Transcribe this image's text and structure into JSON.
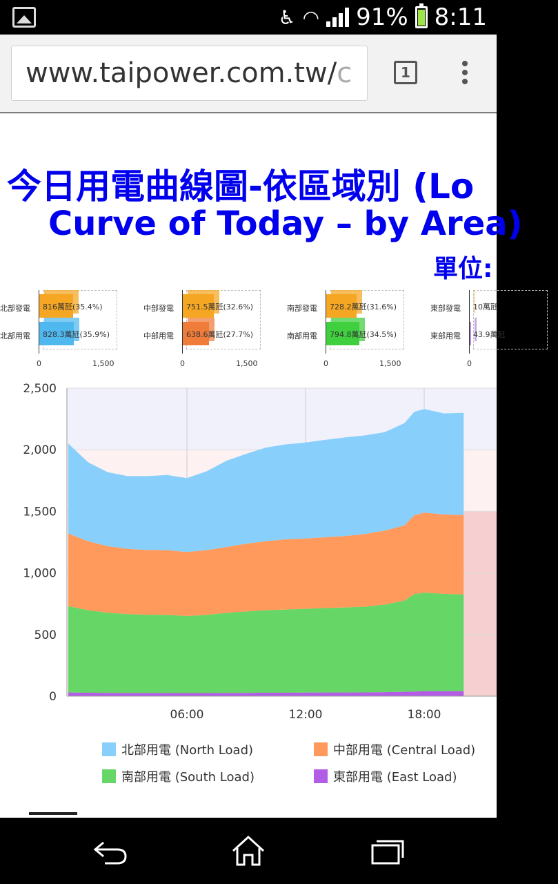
{
  "status_bar": {
    "battery": "91%",
    "time": "8:11",
    "icons": [
      "image-notification-icon",
      "accessibility-icon",
      "wifi-icon",
      "signal-icon",
      "battery-icon"
    ]
  },
  "browser": {
    "url_main": "www.taipower.com.tw/",
    "url_faded": "c",
    "tab_count": "1"
  },
  "page": {
    "title_line1": "今日用電曲線圖-依區域別 (Lo",
    "title_line2": "Curve of Today – by Area)",
    "unit_label": "單位:"
  },
  "regions": [
    {
      "gen_label": "北部發電",
      "load_label": "北部用電",
      "gen_text": "816萬瓩(35.4%)",
      "load_text": "828.3萬瓩(35.9%)",
      "gen": 816,
      "load": 828.3,
      "gen_color": "#f5a623",
      "load_color": "#4fb8ef",
      "tick0": "0",
      "tick1": "1,500"
    },
    {
      "gen_label": "中部發電",
      "load_label": "中部用電",
      "gen_text": "751.5萬瓩(32.6%)",
      "load_text": "638.6萬瓩(27.7%)",
      "gen": 751.5,
      "load": 638.6,
      "gen_color": "#f5a623",
      "load_color": "#f07c3a",
      "tick0": "0",
      "tick1": "1,500"
    },
    {
      "gen_label": "南部發電",
      "load_label": "南部用電",
      "gen_text": "728.2萬瓩(31.6%)",
      "load_text": "794.8萬瓩(34.5%)",
      "gen": 728.2,
      "load": 794.8,
      "gen_color": "#f5a623",
      "load_color": "#3fcf3f",
      "tick0": "0",
      "tick1": "1,500"
    },
    {
      "gen_label": "東部發電",
      "load_label": "東部用電",
      "gen_text": "10萬瓩",
      "load_text": "43.9萬瓩",
      "gen": 10,
      "load": 43.9,
      "gen_color": "#f5a623",
      "load_color": "#b48adf",
      "tick0": "0",
      "tick1": ""
    }
  ],
  "chart_data": {
    "type": "area",
    "stacked": true,
    "x_ticks": [
      "06:00",
      "12:00",
      "18:00"
    ],
    "y_ticks": [
      "0",
      "500",
      "1,000",
      "1,500",
      "2,000",
      "2,500"
    ],
    "ylim": [
      0,
      2500
    ],
    "x_hours": [
      0,
      1,
      2,
      3,
      4,
      5,
      6,
      7,
      8,
      9,
      10,
      11,
      12,
      13,
      14,
      15,
      16,
      17,
      17.5,
      18,
      19,
      20
    ],
    "series": [
      {
        "name": "東部用電 (East Load)",
        "color": "#b35de6",
        "values": [
          30,
          28,
          27,
          26,
          26,
          25,
          25,
          25,
          26,
          27,
          28,
          28,
          29,
          30,
          30,
          31,
          33,
          36,
          38,
          40,
          40,
          40
        ]
      },
      {
        "name": "南部用電 (South Load)",
        "color": "#66d666",
        "values": [
          700,
          670,
          650,
          640,
          635,
          635,
          625,
          635,
          650,
          660,
          670,
          675,
          680,
          685,
          690,
          695,
          710,
          740,
          790,
          800,
          790,
          785
        ]
      },
      {
        "name": "中部用電 (Central Load)",
        "color": "#ff9a5c",
        "values": [
          590,
          560,
          540,
          530,
          525,
          525,
          520,
          525,
          535,
          550,
          560,
          570,
          570,
          575,
          580,
          590,
          600,
          610,
          640,
          650,
          645,
          645
        ]
      },
      {
        "name": "北部用電 (North Load)",
        "color": "#88d0fb",
        "values": [
          730,
          640,
          600,
          590,
          600,
          610,
          600,
          640,
          700,
          730,
          760,
          770,
          780,
          790,
          800,
          800,
          800,
          830,
          840,
          840,
          820,
          830
        ]
      }
    ],
    "legend": [
      {
        "label": "北部用電 (North Load)",
        "color": "#88d0fb"
      },
      {
        "label": "中部用電 (Central Load)",
        "color": "#ff9a5c"
      },
      {
        "label": "南部用電 (South Load)",
        "color": "#66d666"
      },
      {
        "label": "東部用電 (East Load)",
        "color": "#b35de6"
      }
    ]
  }
}
